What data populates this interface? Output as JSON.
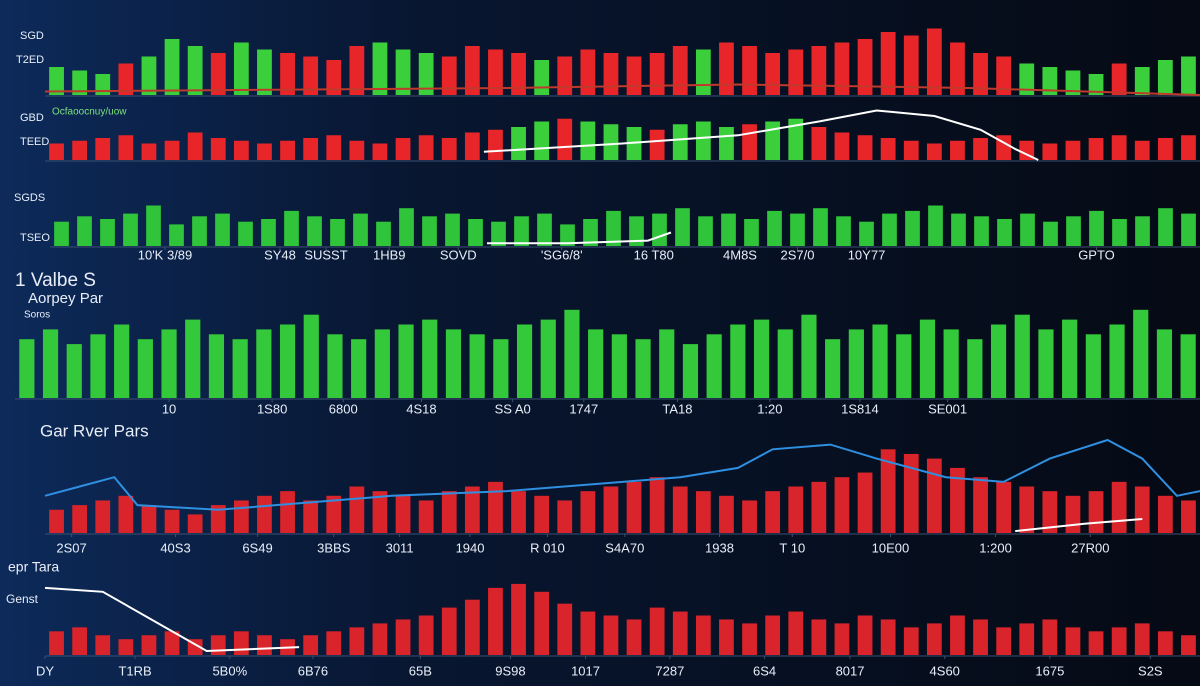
{
  "chart_data": [
    {
      "type": "bar",
      "axis_labels": [
        "SGD",
        "T2ED"
      ],
      "xlim": [
        0,
        100
      ],
      "ylim": [
        0,
        100
      ],
      "values": [
        40,
        35,
        30,
        45,
        55,
        80,
        70,
        60,
        75,
        65,
        60,
        55,
        50,
        70,
        75,
        65,
        60,
        55,
        70,
        65,
        60,
        50,
        55,
        65,
        60,
        55,
        60,
        70,
        65,
        75,
        70,
        60,
        65,
        70,
        75,
        80,
        90,
        85,
        95,
        75,
        60,
        55,
        45,
        40,
        35,
        30,
        45,
        40,
        50,
        55
      ],
      "colors": [
        "#3ccf3c",
        "#3ccf3c",
        "#3ccf3c",
        "#e8262a",
        "#3ccf3c",
        "#3ccf3c",
        "#3ccf3c",
        "#e8262a",
        "#3ccf3c",
        "#3ccf3c",
        "#e8262a",
        "#e8262a",
        "#e8262a",
        "#e8262a",
        "#3ccf3c",
        "#3ccf3c",
        "#3ccf3c",
        "#e8262a",
        "#e8262a",
        "#e8262a",
        "#e8262a",
        "#3ccf3c",
        "#e8262a",
        "#e8262a",
        "#e8262a",
        "#e8262a",
        "#e8262a",
        "#e8262a",
        "#3ccf3c",
        "#e8262a",
        "#e8262a",
        "#e8262a",
        "#e8262a",
        "#e8262a",
        "#e8262a",
        "#e8262a",
        "#e8262a",
        "#e8262a",
        "#e8262a",
        "#e8262a",
        "#e8262a",
        "#e8262a",
        "#3ccf3c",
        "#3ccf3c",
        "#3ccf3c",
        "#3ccf3c",
        "#e8262a",
        "#3ccf3c",
        "#3ccf3c",
        "#3ccf3c"
      ],
      "lines": [
        {
          "color": "#c0392b",
          "x": [
            0,
            40,
            60,
            80,
            100
          ],
          "values": [
            5,
            10,
            15,
            10,
            0
          ]
        }
      ]
    },
    {
      "type": "bar",
      "axis_labels": [
        "GBD",
        "TEED"
      ],
      "subtitle": "Ocfaoocnuy/uow",
      "xlim": [
        0,
        100
      ],
      "ylim": [
        0,
        100
      ],
      "values": [
        30,
        35,
        40,
        45,
        30,
        35,
        50,
        40,
        35,
        30,
        35,
        40,
        45,
        35,
        30,
        40,
        45,
        40,
        50,
        55,
        60,
        70,
        75,
        70,
        65,
        60,
        55,
        65,
        70,
        60,
        65,
        70,
        75,
        60,
        50,
        45,
        40,
        35,
        30,
        35,
        40,
        45,
        35,
        30,
        35,
        40,
        45,
        35,
        40,
        45
      ],
      "colors": [
        "#e8262a",
        "#e8262a",
        "#e8262a",
        "#e8262a",
        "#e8262a",
        "#e8262a",
        "#e8262a",
        "#e8262a",
        "#e8262a",
        "#e8262a",
        "#e8262a",
        "#e8262a",
        "#e8262a",
        "#e8262a",
        "#e8262a",
        "#e8262a",
        "#e8262a",
        "#e8262a",
        "#e8262a",
        "#e8262a",
        "#3ccf3c",
        "#3ccf3c",
        "#e8262a",
        "#3ccf3c",
        "#3ccf3c",
        "#3ccf3c",
        "#e8262a",
        "#3ccf3c",
        "#3ccf3c",
        "#3ccf3c",
        "#e8262a",
        "#3ccf3c",
        "#3ccf3c",
        "#e8262a",
        "#e8262a",
        "#e8262a",
        "#e8262a",
        "#e8262a",
        "#e8262a",
        "#e8262a",
        "#e8262a",
        "#e8262a",
        "#e8262a",
        "#e8262a",
        "#e8262a",
        "#e8262a",
        "#e8262a",
        "#e8262a",
        "#e8262a",
        "#e8262a"
      ],
      "lines": [
        {
          "color": "#ffffff",
          "x": [
            38,
            50,
            60,
            67,
            72,
            77,
            81,
            84,
            86
          ],
          "values": [
            15,
            30,
            45,
            70,
            90,
            80,
            55,
            20,
            0
          ]
        }
      ]
    },
    {
      "type": "bar",
      "axis_labels": [
        "SGDS",
        "TSEO"
      ],
      "xlim": [
        0,
        100
      ],
      "ylim": [
        0,
        100
      ],
      "color": "#2fc43a",
      "values": [
        45,
        55,
        50,
        60,
        75,
        40,
        55,
        60,
        45,
        50,
        65,
        55,
        50,
        60,
        45,
        70,
        55,
        60,
        50,
        45,
        55,
        60,
        40,
        50,
        65,
        55,
        60,
        70,
        55,
        60,
        50,
        65,
        60,
        70,
        55,
        45,
        60,
        65,
        75,
        60,
        55,
        50,
        60,
        45,
        55,
        65,
        50,
        55,
        70,
        60
      ],
      "xticks": [
        {
          "value": 10,
          "label": "10'K 3/89"
        },
        {
          "value": 20,
          "label": "SY48"
        },
        {
          "value": 24,
          "label": "SUSST"
        },
        {
          "value": 29.5,
          "label": "1HB9"
        },
        {
          "value": 35.5,
          "label": "SOVD"
        },
        {
          "value": 44.5,
          "label": "'SG6/8'"
        },
        {
          "value": 52.5,
          "label": "16 T80"
        },
        {
          "value": 60,
          "label": "4M8S"
        },
        {
          "value": 65,
          "label": "2S7/0"
        },
        {
          "value": 71,
          "label": "10Y77"
        },
        {
          "value": 91,
          "label": "GPTO"
        }
      ],
      "lines": [
        {
          "color": "#ffffff",
          "x": [
            38,
            45,
            52,
            54
          ],
          "values": [
            5,
            5,
            10,
            25
          ]
        }
      ]
    },
    {
      "type": "bar",
      "title": "1 Valbe S",
      "subtitle": "Aorpey Par",
      "note": "Soros",
      "xlim": [
        0,
        100
      ],
      "ylim": [
        0,
        100
      ],
      "color": "#33c93a",
      "values": [
        60,
        70,
        55,
        65,
        75,
        60,
        70,
        80,
        65,
        60,
        70,
        75,
        85,
        65,
        60,
        70,
        75,
        80,
        70,
        65,
        60,
        75,
        80,
        90,
        70,
        65,
        60,
        70,
        55,
        65,
        75,
        80,
        70,
        85,
        60,
        70,
        75,
        65,
        80,
        70,
        60,
        75,
        85,
        70,
        80,
        65,
        75,
        90,
        70,
        65
      ],
      "xticks": [
        {
          "value": 13,
          "label": "10"
        },
        {
          "value": 21.7,
          "label": "1S80"
        },
        {
          "value": 27.7,
          "label": "6800"
        },
        {
          "value": 34.3,
          "label": "4S18"
        },
        {
          "value": 42,
          "label": "SS A0"
        },
        {
          "value": 48,
          "label": "1747"
        },
        {
          "value": 55.9,
          "label": "TA18"
        },
        {
          "value": 63.7,
          "label": "1:20"
        },
        {
          "value": 71.3,
          "label": "1S814"
        },
        {
          "value": 78.7,
          "label": "SE001"
        }
      ]
    },
    {
      "type": "bar",
      "title": "Gar Rver Pars",
      "xlim": [
        0,
        100
      ],
      "ylim": [
        0,
        100
      ],
      "color": "#d8242a",
      "values": [
        25,
        30,
        35,
        40,
        30,
        25,
        20,
        30,
        35,
        40,
        45,
        35,
        40,
        50,
        45,
        40,
        35,
        45,
        50,
        55,
        45,
        40,
        35,
        45,
        50,
        55,
        60,
        50,
        45,
        40,
        35,
        45,
        50,
        55,
        60,
        65,
        90,
        85,
        80,
        70,
        60,
        55,
        50,
        45,
        40,
        45,
        55,
        50,
        40,
        35
      ],
      "xticks": [
        {
          "value": 2.3,
          "label": "2S07"
        },
        {
          "value": 11.3,
          "label": "40S3"
        },
        {
          "value": 18.4,
          "label": "6S49"
        },
        {
          "value": 25,
          "label": "3BBS"
        },
        {
          "value": 30.7,
          "label": "3011"
        },
        {
          "value": 36.8,
          "label": "1940"
        },
        {
          "value": 43.5,
          "label": "R 010"
        },
        {
          "value": 50.2,
          "label": "S4A70"
        },
        {
          "value": 58.4,
          "label": "1938"
        },
        {
          "value": 64.7,
          "label": "T 10"
        },
        {
          "value": 73.2,
          "label": "10E00"
        },
        {
          "value": 82.3,
          "label": "1:200"
        },
        {
          "value": 90.5,
          "label": "27R00"
        }
      ],
      "lines": [
        {
          "color": "#2f8fe0",
          "x": [
            0,
            3,
            6,
            8,
            15,
            30,
            40,
            50,
            55,
            60,
            63,
            68,
            72,
            78,
            83,
            87,
            92,
            95,
            98,
            100
          ],
          "values": [
            40,
            50,
            60,
            30,
            25,
            40,
            45,
            55,
            60,
            70,
            90,
            95,
            80,
            60,
            55,
            80,
            100,
            80,
            40,
            45
          ]
        },
        {
          "color": "#ffffff",
          "x": [
            84,
            90,
            95
          ],
          "values": [
            2,
            10,
            15
          ]
        }
      ]
    },
    {
      "type": "bar",
      "title": "epr Tara",
      "subtitle": "Genst",
      "xlim": [
        0,
        100
      ],
      "ylim": [
        0,
        100
      ],
      "color": "#d8242a",
      "values": [
        30,
        35,
        25,
        20,
        25,
        30,
        20,
        25,
        30,
        25,
        20,
        25,
        30,
        35,
        40,
        45,
        50,
        60,
        70,
        85,
        90,
        80,
        65,
        55,
        50,
        45,
        60,
        55,
        50,
        45,
        40,
        50,
        55,
        45,
        40,
        50,
        45,
        35,
        40,
        50,
        45,
        35,
        40,
        45,
        35,
        30,
        35,
        40,
        30,
        25
      ],
      "xticks": [
        {
          "value": 0,
          "label": "DY"
        },
        {
          "value": 7.8,
          "label": "T1RB"
        },
        {
          "value": 16,
          "label": "5B0%"
        },
        {
          "value": 23.2,
          "label": "6B76"
        },
        {
          "value": 32.5,
          "label": "65B"
        },
        {
          "value": 40.3,
          "label": "9S98"
        },
        {
          "value": 46.8,
          "label": "1017"
        },
        {
          "value": 54.1,
          "label": "7287"
        },
        {
          "value": 62.3,
          "label": "6S4"
        },
        {
          "value": 69.7,
          "label": "8017"
        },
        {
          "value": 77.9,
          "label": "4S60"
        },
        {
          "value": 87,
          "label": "1675"
        },
        {
          "value": 95.7,
          "label": "S2S"
        }
      ],
      "lines": [
        {
          "color": "#ffffff",
          "x": [
            0,
            5,
            14,
            22
          ],
          "values": [
            85,
            80,
            5,
            10
          ]
        }
      ]
    }
  ]
}
